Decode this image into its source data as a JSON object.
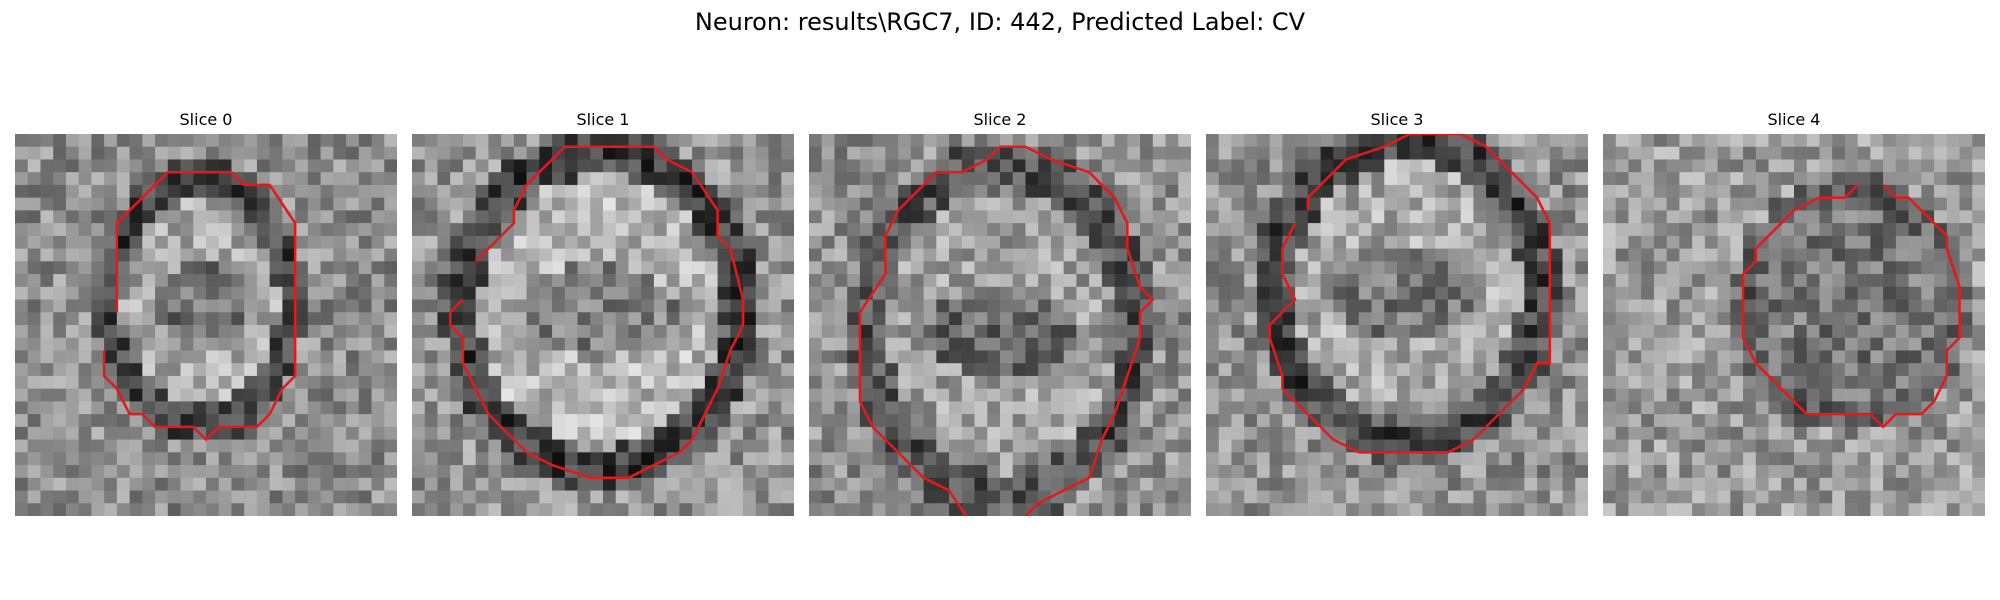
{
  "figure": {
    "title": "Neuron: results\\RGC7, ID: 442, Predicted Label: CV"
  },
  "contour_color": "#e31a1c",
  "slices": [
    {
      "label": "Slice 0"
    },
    {
      "label": "Slice 1"
    },
    {
      "label": "Slice 2"
    },
    {
      "label": "Slice 3"
    },
    {
      "label": "Slice 4"
    }
  ]
}
